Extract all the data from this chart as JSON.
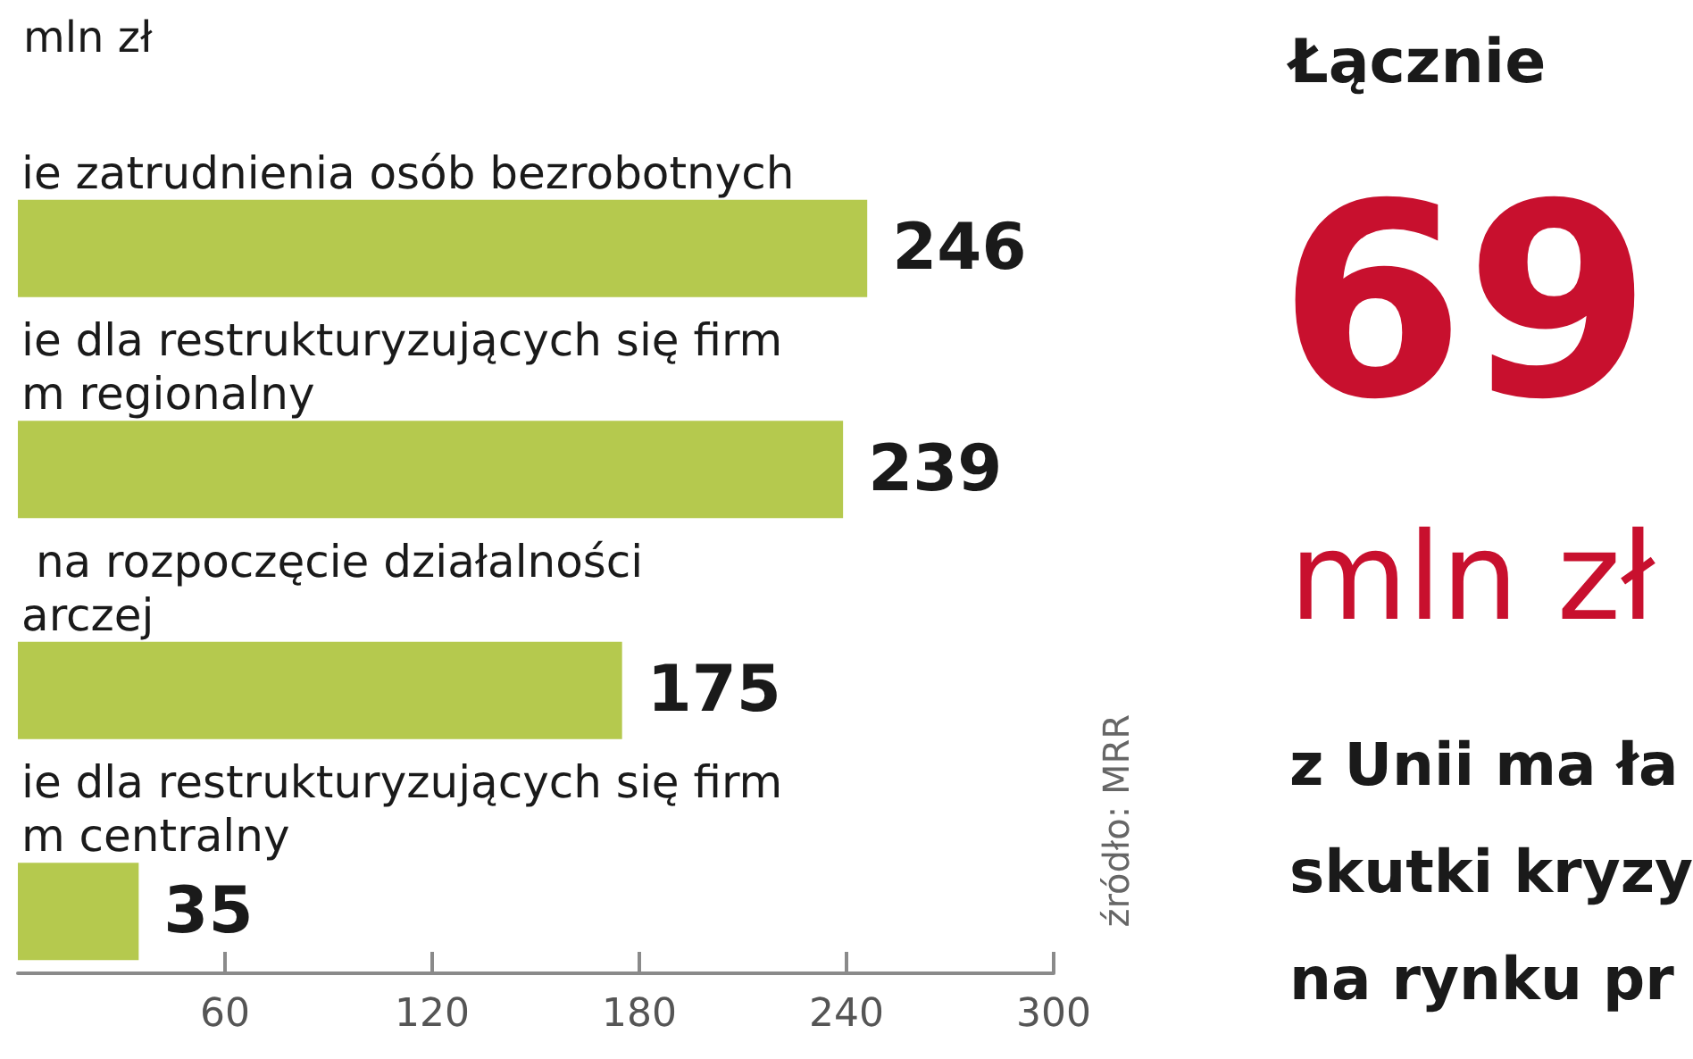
{
  "chart_data": {
    "type": "bar",
    "orientation": "horizontal",
    "title": "mln zł",
    "categories": [
      "ie zatrudnienia osób bezrobotnych",
      "ie dla restrukturyzujących się firm\nm regionalny",
      " na rozpoczęcie działalności\narczej",
      "ie dla restrukturyzujących się firm\nm centralny"
    ],
    "values": [
      246,
      239,
      175,
      35
    ],
    "color": "#b5c94e",
    "data_labels": true,
    "xlim": [
      0,
      300
    ],
    "xticks": [
      60,
      120,
      180,
      240,
      300
    ],
    "annotations": [
      "źródło: MRR",
      "Łącznie",
      "69",
      "mln zł",
      "z Unii ma ła\nskutki kryzy\nna rynku pr"
    ]
  }
}
